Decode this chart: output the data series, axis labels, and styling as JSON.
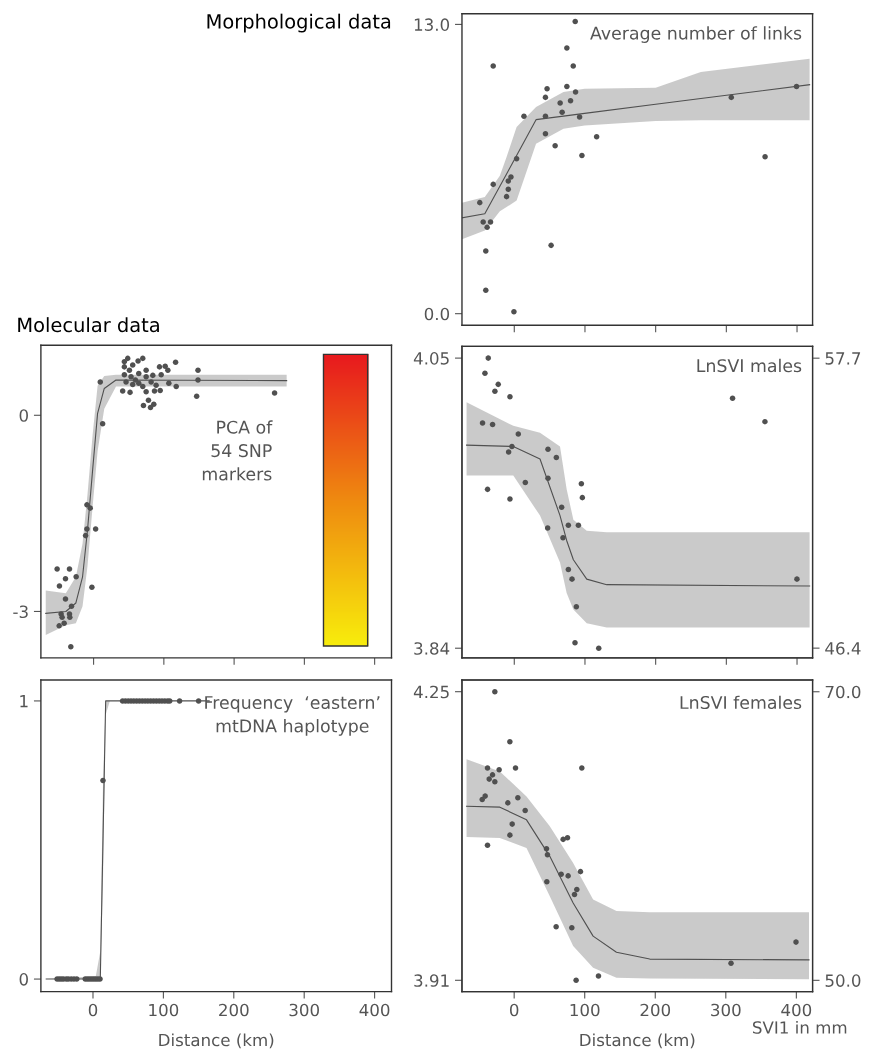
{
  "chart_data": [
    {
      "type": "scatter",
      "title": "Average number of links",
      "annotations": [
        "Morphological data"
      ],
      "marker": "circle",
      "tick_labels": "y",
      "xlim": [
        -74,
        422
      ],
      "xticks": [
        0,
        100,
        200,
        300,
        400
      ],
      "ylim": [
        -0.52,
        13.48
      ],
      "yticks": [
        {
          "value": 0,
          "label": "0.0"
        },
        {
          "value": 13,
          "label": "13.0"
        }
      ],
      "series": [
        {
          "color": "#505050",
          "x": [
            -48.8,
            -44,
            -38.4,
            -33.6,
            -40.3,
            -40.3,
            -29.8,
            -29.8,
            -10.9,
            -8.5,
            -8.5,
            -4.7,
            -0.5,
            3.3,
            13.7,
            44.1,
            46.4,
            44.1,
            44.1,
            57.8,
            52.1,
            64.9,
            67.7,
            74.4,
            74.4,
            79.6,
            83.4,
            86.2,
            86.7,
            92.4,
            95.7,
            116.5,
            307,
            354.8,
            399.3
          ],
          "values": [
            4.99,
            4.12,
            3.88,
            4.12,
            2.82,
            1.05,
            11.13,
            5.81,
            5.26,
            5.59,
            5.96,
            6.14,
            0.09,
            6.96,
            8.87,
            9.72,
            10.11,
            8.87,
            8.09,
            7.55,
            3.07,
            9.47,
            9.05,
            11.94,
            10.21,
            9.57,
            11.13,
            13.13,
            9.96,
            8.84,
            7.11,
            7.95,
            9.72,
            7.05,
            10.21
          ]
        },
        {
          "type": "line",
          "marker": "none",
          "color": "#505050",
          "x": [
            -74,
            -41.7,
            -20.4,
            -10.9,
            3.3,
            30.8,
            69.6,
            99.5,
            200,
            263.9,
            417.8
          ],
          "values": [
            4.31,
            4.49,
            5.73,
            6.28,
            7.11,
            8.72,
            8.88,
            9.0,
            9.41,
            9.67,
            10.29
          ],
          "lower": [
            3.34,
            3.74,
            4.6,
            4.79,
            5.09,
            7.64,
            8.31,
            8.46,
            8.66,
            8.69,
            8.69
          ],
          "upper": [
            4.99,
            5.24,
            6.2,
            7.04,
            8.39,
            9.29,
            9.96,
            10.11,
            10.15,
            10.86,
            11.46
          ]
        }
      ]
    },
    {
      "type": "scatter",
      "title": "PCA of\n54 SNP\nmarkers",
      "annotations": [
        "Molecular data"
      ],
      "marker": "circle",
      "tick_labels": "y",
      "xlim": [
        -75,
        424
      ],
      "xticks": [
        0,
        100,
        200,
        300,
        400
      ],
      "ylim": [
        -3.71,
        1.07
      ],
      "yticks": [
        -3,
        0
      ],
      "series": [
        {
          "color": "#505050",
          "x": [
            -51.9,
            -48.6,
            -40,
            -34.3,
            -24.8,
            -40,
            -46.2,
            -44.8,
            -41.9,
            -49,
            -34.3,
            -31.4,
            -33.8,
            -32.4,
            -2.4,
            -9.5,
            -4.8,
            -9.5,
            -11.4,
            2.9,
            12.9,
            9.5,
            43.8,
            48.6,
            43.8,
            51,
            55.7,
            63.3,
            70,
            74.8,
            93.8,
            101.9,
            116.7,
            43.8,
            53.3,
            59.5,
            64.3,
            74.8,
            84.3,
            96.2,
            46.2,
            55.7,
            70,
            81.9,
            89,
            107.1,
            117.6,
            41.4,
            51.9,
            74.8,
            86.7,
            94.8,
            78.1,
            71,
            81,
            85.7,
            148.6,
            148.6,
            146.7,
            257.6,
            64.3,
            105.7
          ],
          "values": [
            -2.35,
            -2.61,
            -2.5,
            -2.35,
            -2.47,
            -2.81,
            -3.04,
            -3.09,
            -3.18,
            -3.22,
            -3.04,
            -2.92,
            -3.09,
            -3.54,
            -2.63,
            -1.37,
            -1.42,
            -1.74,
            -1.84,
            -1.74,
            -0.13,
            0.51,
            0.82,
            0.87,
            0.74,
            0.69,
            0.77,
            0.83,
            0.87,
            0.69,
            0.74,
            0.75,
            0.81,
            0.62,
            0.59,
            0.54,
            0.49,
            0.59,
            0.61,
            0.62,
            0.51,
            0.47,
            0.44,
            0.51,
            0.46,
            0.49,
            0.44,
            0.37,
            0.35,
            0.36,
            0.37,
            0.38,
            0.23,
            0.15,
            0.12,
            0.17,
            0.69,
            0.54,
            0.29,
            0.34,
            0.64,
            0.69
          ]
        },
        {
          "type": "line",
          "marker": "none",
          "color": "#505050",
          "x": [
            -68.1,
            -39.5,
            -25.2,
            -15.7,
            -8.6,
            -1.4,
            5.7,
            15.2,
            31.9,
            274.8
          ],
          "values": [
            -3.03,
            -3.0,
            -2.87,
            -2.47,
            -1.75,
            -0.84,
            0.03,
            0.41,
            0.54,
            0.53
          ],
          "lower": [
            -3.36,
            -3.21,
            -3.18,
            -2.92,
            -2.3,
            -1.4,
            -0.55,
            0.1,
            0.44,
            0.44
          ],
          "upper": [
            -2.68,
            -2.72,
            -2.47,
            -1.96,
            -1.2,
            -0.3,
            0.45,
            0.6,
            0.62,
            0.62
          ]
        }
      ]
    },
    {
      "type": "scatter",
      "title": "LnSVI males",
      "marker": "circle",
      "tick_labels": "y",
      "xlim": [
        -74,
        422
      ],
      "xticks": [
        0,
        100,
        200,
        300,
        400
      ],
      "ylim": [
        3.833,
        4.0585
      ],
      "yticks": [
        3.84,
        4.05
      ],
      "y2lim": [
        46.02,
        58.16
      ],
      "y2ticks": [
        46.4,
        57.7
      ],
      "series": [
        {
          "color": "#505050",
          "x": [
            -36.8,
            -41.5,
            -22.7,
            -27.4,
            -6.1,
            -44.9,
            -30.7,
            5.7,
            -3.3,
            -8.0,
            -37.8,
            -6.1,
            15.6,
            47.7,
            59.5,
            47.7,
            67,
            47.2,
            76.5,
            90.7,
            68.9,
            94.9,
            96.3,
            76.5,
            81.7,
            87.8,
            85.9,
            119.5,
            308.8,
            354.6,
            399.9
          ],
          "values": [
            4.05,
            4.039,
            4.031,
            4.026,
            4.022,
            4.003,
            4.002,
            3.995,
            3.986,
            3.982,
            3.955,
            3.948,
            3.96,
            3.984,
            3.978,
            3.963,
            3.942,
            3.927,
            3.929,
            3.929,
            3.92,
            3.959,
            3.949,
            3.897,
            3.89,
            3.87,
            3.844,
            3.84,
            4.021,
            4.004,
            3.89
          ]
        },
        {
          "type": "line",
          "marker": "none",
          "color": "#505050",
          "x": [
            -67.5,
            -1.4,
            36.4,
            64.7,
            74.1,
            83.6,
            102.5,
            130.8,
            417.8
          ],
          "values": [
            3.987,
            3.986,
            3.977,
            3.936,
            3.918,
            3.904,
            3.89,
            3.886,
            3.885
          ],
          "lower": [
            3.965,
            3.965,
            3.936,
            3.902,
            3.88,
            3.868,
            3.858,
            3.855,
            3.855
          ],
          "upper": [
            4.018,
            4.001,
            3.996,
            3.986,
            3.955,
            3.933,
            3.925,
            3.924,
            3.924
          ]
        }
      ]
    },
    {
      "type": "scatter",
      "title": "Frequency  ‘eastern’\nmtDNA haplotype",
      "marker": "circle",
      "xlabel": "Distance (km)",
      "xlim": [
        -74,
        424
      ],
      "xticks": [
        0,
        100,
        200,
        300,
        400
      ],
      "ylim": [
        -0.045,
        1.075
      ],
      "yticks": [
        0,
        1
      ],
      "series": [
        {
          "color": "#505050",
          "x": [
            -51,
            -48,
            -45,
            -42,
            -38,
            -35,
            -31,
            -27,
            -23,
            -11,
            -8,
            -5,
            -2,
            1,
            4,
            7,
            10,
            14.2,
            42,
            46,
            50,
            54,
            58,
            62,
            66,
            70,
            74,
            78,
            82,
            86,
            90,
            94,
            98,
            102,
            106,
            109,
            123,
            150
          ],
          "values": [
            0,
            0,
            0,
            0,
            0,
            0,
            0,
            0,
            0,
            0,
            0,
            0,
            0,
            0,
            0,
            0,
            0,
            0.714,
            1,
            1,
            1,
            1,
            1,
            1,
            1,
            1,
            1,
            1,
            1,
            1,
            1,
            1,
            1,
            1,
            1,
            1,
            1,
            1
          ]
        },
        {
          "type": "line",
          "marker": "none",
          "color": "#505050",
          "x": [
            -66.4,
            4,
            10.4,
            14.2,
            18,
            24,
            165
          ],
          "values": [
            0,
            0,
            0,
            0.5,
            1,
            1,
            1
          ],
          "lower": [
            0,
            0,
            0,
            0.35,
            0.95,
            1,
            1
          ],
          "upper": [
            0,
            0.01,
            0.1,
            0.7,
            1,
            1,
            1
          ]
        }
      ]
    },
    {
      "type": "scatter",
      "title": "LnSVI females",
      "marker": "circle",
      "xlabel": "Distance (km)",
      "annotations": [
        "SVI1 in mm"
      ],
      "xlim": [
        -74,
        423
      ],
      "xticks": [
        0,
        100,
        200,
        300,
        400
      ],
      "ylim": [
        3.8967,
        4.2637
      ],
      "yticks": [
        3.91,
        4.25
      ],
      "y2lim": [
        49.22,
        70.81
      ],
      "y2ticks": [
        {
          "value": 50,
          "label": "50.0"
        },
        {
          "value": 70,
          "label": "70.0"
        }
      ],
      "series": [
        {
          "color": "#505050",
          "x": [
            -27.4,
            -6.1,
            -37.8,
            -21.3,
            1.9,
            95.9,
            -30.7,
            -35.4,
            -27.4,
            -45.3,
            -41.1,
            -9.0,
            5.2,
            15.6,
            -2.8,
            -6.1,
            -37.8,
            45.8,
            47.2,
            69.4,
            75.6,
            66.6,
            76.5,
            94,
            46.3,
            88.8,
            85.5,
            59.5,
            81.7,
            87.8,
            119.5,
            307.4,
            399.5
          ],
          "values": [
            4.25,
            4.191,
            4.16,
            4.158,
            4.16,
            4.16,
            4.152,
            4.147,
            4.144,
            4.123,
            4.127,
            4.119,
            4.125,
            4.11,
            4.094,
            4.081,
            4.069,
            4.065,
            4.058,
            4.076,
            4.078,
            4.035,
            4.033,
            4.038,
            4.026,
            4.017,
            4.011,
            3.973,
            3.972,
            3.91,
            3.915,
            3.93,
            3.955
          ]
        },
        {
          "type": "line",
          "marker": "none",
          "color": "#505050",
          "x": [
            -67.5,
            -20.3,
            17.5,
            50.5,
            83.6,
            111.9,
            145,
            192.2,
            417.9
          ],
          "values": [
            4.115,
            4.114,
            4.099,
            4.056,
            4.001,
            3.962,
            3.943,
            3.935,
            3.934
          ],
          "lower": [
            4.0788,
            4.0776,
            4.0659,
            4.0091,
            3.9503,
            3.9249,
            3.9131,
            3.912,
            3.9112
          ],
          "upper": [
            4.1705,
            4.156,
            4.1266,
            4.0914,
            4.0483,
            4.0052,
            3.9915,
            3.9903,
            3.9903
          ]
        }
      ]
    }
  ]
}
